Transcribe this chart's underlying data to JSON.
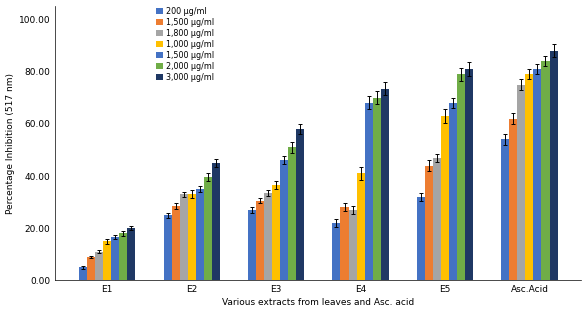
{
  "categories": [
    "E1",
    "E2",
    "E3",
    "E4",
    "E5",
    "Asc.Acid"
  ],
  "series_labels": [
    "200 μg/ml",
    "1,500 μg/ml",
    "1,800 μg/ml",
    "1,000 μg/ml",
    "1,500 μg/ml",
    "2,000 μg/ml",
    "3,000 μg/ml"
  ],
  "series_colors": [
    "#4472C4",
    "#ED7D31",
    "#A5A5A5",
    "#FFC000",
    "#4472C4",
    "#70AD47",
    "#1F3864"
  ],
  "values": [
    [
      5.0,
      25.0,
      27.0,
      22.0,
      32.0,
      54.0
    ],
    [
      9.0,
      28.5,
      30.5,
      28.0,
      44.0,
      62.0
    ],
    [
      11.0,
      33.0,
      33.5,
      27.0,
      47.0,
      75.0
    ],
    [
      15.0,
      33.0,
      36.5,
      41.0,
      63.0,
      79.0
    ],
    [
      16.5,
      35.0,
      46.0,
      68.0,
      68.0,
      81.0
    ],
    [
      18.0,
      39.5,
      51.0,
      70.0,
      79.0,
      84.0
    ],
    [
      20.0,
      45.0,
      58.0,
      73.5,
      81.0,
      88.0
    ]
  ],
  "errors": [
    [
      0.5,
      1.0,
      1.0,
      1.5,
      1.5,
      2.0
    ],
    [
      0.5,
      1.0,
      1.0,
      1.5,
      2.0,
      2.0
    ],
    [
      0.5,
      1.0,
      1.0,
      1.5,
      1.5,
      2.0
    ],
    [
      1.0,
      1.5,
      1.5,
      2.5,
      2.5,
      2.0
    ],
    [
      0.8,
      1.0,
      1.5,
      2.5,
      2.0,
      2.0
    ],
    [
      1.0,
      1.5,
      2.0,
      2.5,
      2.5,
      2.0
    ],
    [
      0.8,
      1.5,
      2.0,
      2.5,
      2.5,
      2.5
    ]
  ],
  "ylabel": "Percentage Inhibition (517 nm)",
  "xlabel": "Various extracts from leaves and Asc. acid",
  "ylim": [
    0,
    105
  ],
  "yticks": [
    0.0,
    20.0,
    40.0,
    60.0,
    80.0,
    100.0
  ],
  "ytick_labels": [
    "0.00",
    "20.00",
    "40.00",
    "60.00",
    "80.00",
    "100.00"
  ],
  "background_color": "#FFFFFF",
  "bar_width": 0.095
}
